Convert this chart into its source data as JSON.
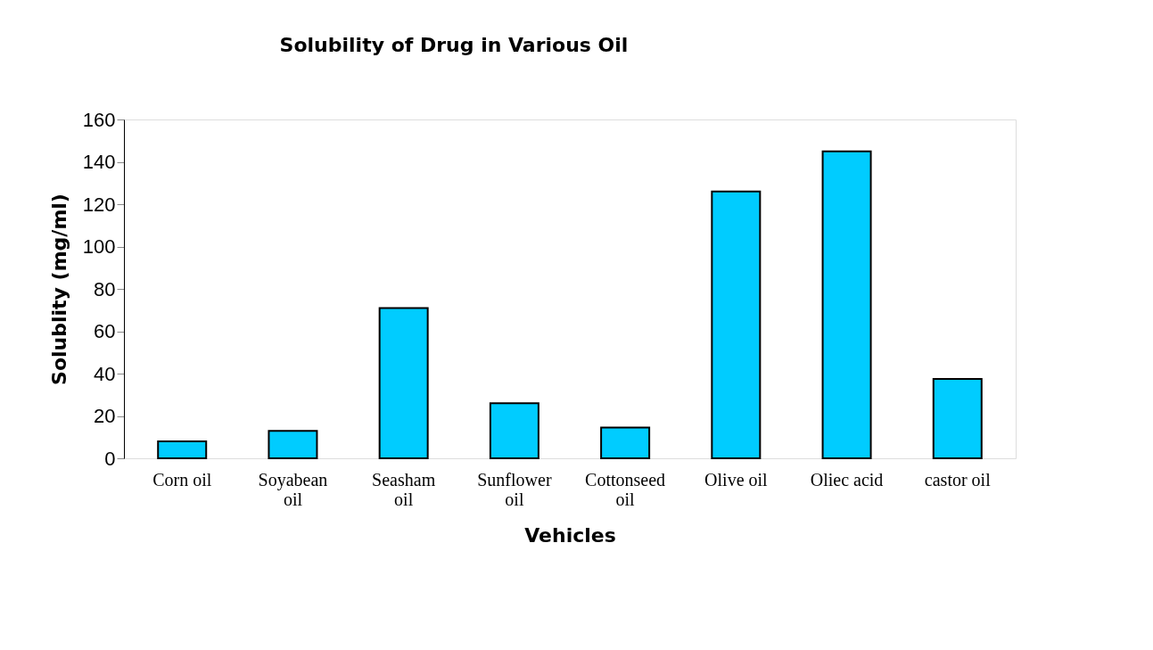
{
  "chart_data": {
    "type": "bar",
    "title": "Solubility of Drug in Various Oil",
    "xlabel": "Vehicles",
    "ylabel": "Solublity (mg/ml)",
    "categories": [
      "Corn oil",
      "Soyabean\noil",
      "Seasham\noil",
      "Sunflower\noil",
      "Cottonseed\noil",
      "Olive oil",
      "Oliec acid",
      "castor oil"
    ],
    "values": [
      8,
      13,
      71,
      26,
      14.5,
      126,
      145,
      37.5
    ],
    "color": "#00ccff",
    "ylim": [
      0,
      160
    ],
    "yticks": [
      0,
      20,
      40,
      60,
      80,
      100,
      120,
      140,
      160
    ],
    "grid": false
  }
}
